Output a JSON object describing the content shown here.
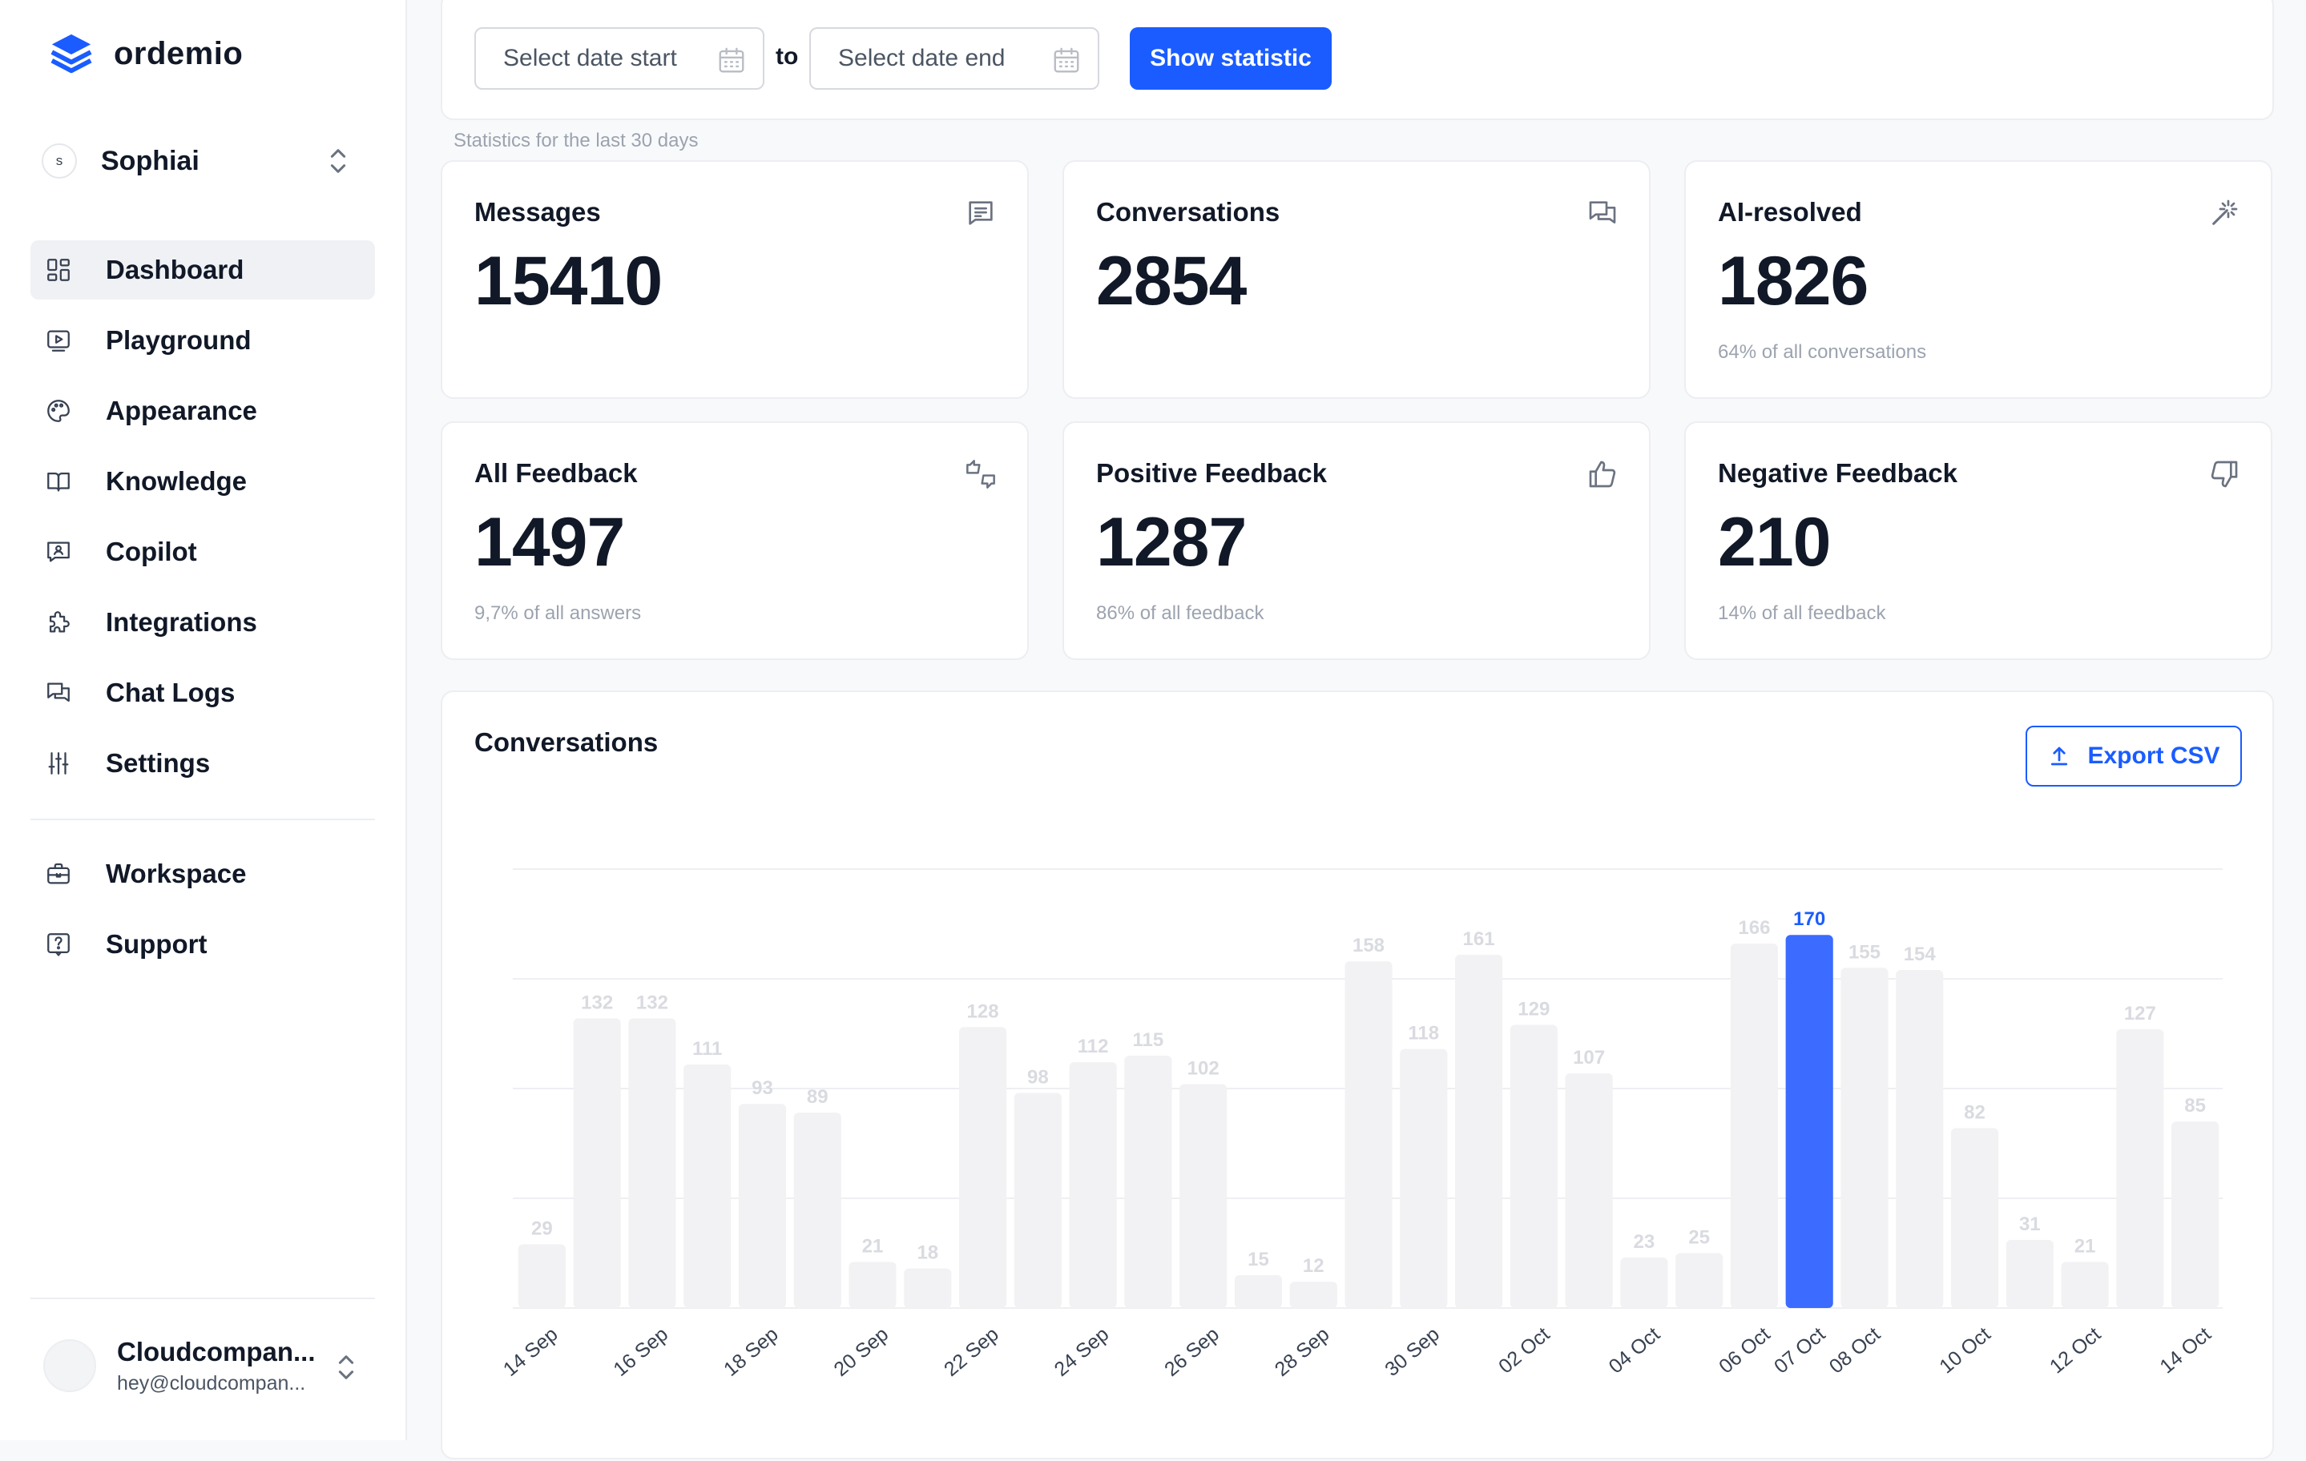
{
  "app": {
    "name": "ordemio"
  },
  "workspace": {
    "initial": "s",
    "name": "Sophiai"
  },
  "nav": {
    "main": [
      {
        "id": "dashboard",
        "label": "Dashboard",
        "icon": "dashboard-icon",
        "active": true
      },
      {
        "id": "playground",
        "label": "Playground",
        "icon": "play-icon",
        "active": false
      },
      {
        "id": "appearance",
        "label": "Appearance",
        "icon": "palette-icon",
        "active": false
      },
      {
        "id": "knowledge",
        "label": "Knowledge",
        "icon": "book-icon",
        "active": false
      },
      {
        "id": "copilot",
        "label": "Copilot",
        "icon": "copilot-icon",
        "active": false
      },
      {
        "id": "integrations",
        "label": "Integrations",
        "icon": "puzzle-icon",
        "active": false
      },
      {
        "id": "chat-logs",
        "label": "Chat Logs",
        "icon": "chat-icon",
        "active": false
      },
      {
        "id": "settings",
        "label": "Settings",
        "icon": "sliders-icon",
        "active": false
      }
    ],
    "secondary": [
      {
        "id": "workspace",
        "label": "Workspace",
        "icon": "briefcase-icon"
      },
      {
        "id": "support",
        "label": "Support",
        "icon": "help-icon"
      }
    ]
  },
  "user": {
    "name": "Cloudcompan...",
    "email": "hey@cloudcompan..."
  },
  "filters": {
    "start_placeholder": "Select date start",
    "end_placeholder": "Select date end",
    "to_label": "to",
    "show_button": "Show statistic",
    "caption": "Statistics for the last 30 days"
  },
  "stats": [
    {
      "title": "Messages",
      "value": "15410",
      "sub": "",
      "icon": "message-icon"
    },
    {
      "title": "Conversations",
      "value": "2854",
      "sub": "",
      "icon": "conversations-icon"
    },
    {
      "title": "AI-resolved",
      "value": "1826",
      "sub": "64% of all conversations",
      "icon": "magic-wand-icon"
    },
    {
      "title": "All Feedback",
      "value": "1497",
      "sub": "9,7% of all answers",
      "icon": "thumbs-updown-icon"
    },
    {
      "title": "Positive Feedback",
      "value": "1287",
      "sub": "86% of all feedback",
      "icon": "thumbs-up-icon"
    },
    {
      "title": "Negative Feedback",
      "value": "210",
      "sub": "14% of all feedback",
      "icon": "thumbs-down-icon"
    }
  ],
  "chart_section": {
    "title": "Conversations",
    "export_label": "Export CSV"
  },
  "chart_data": {
    "type": "bar",
    "title": "Conversations",
    "values": [
      29,
      132,
      132,
      111,
      93,
      89,
      21,
      18,
      128,
      98,
      112,
      115,
      102,
      15,
      12,
      158,
      118,
      161,
      129,
      107,
      23,
      25,
      166,
      170,
      155,
      154,
      82,
      31,
      21,
      127,
      85
    ],
    "x_tick_labels": [
      {
        "index": 0,
        "label": "14 Sep"
      },
      {
        "index": 2,
        "label": "16 Sep"
      },
      {
        "index": 4,
        "label": "18 Sep"
      },
      {
        "index": 6,
        "label": "20 Sep"
      },
      {
        "index": 8,
        "label": "22 Sep"
      },
      {
        "index": 10,
        "label": "24 Sep"
      },
      {
        "index": 12,
        "label": "26 Sep"
      },
      {
        "index": 14,
        "label": "28 Sep"
      },
      {
        "index": 16,
        "label": "30 Sep"
      },
      {
        "index": 18,
        "label": "02 Oct"
      },
      {
        "index": 20,
        "label": "04 Oct"
      },
      {
        "index": 22,
        "label": "06 Oct"
      },
      {
        "index": 23,
        "label": "07 Oct"
      },
      {
        "index": 24,
        "label": "08 Oct"
      },
      {
        "index": 26,
        "label": "10 Oct"
      },
      {
        "index": 28,
        "label": "12 Oct"
      },
      {
        "index": 30,
        "label": "14 Oct"
      }
    ],
    "highlighted_index": 23,
    "ylim": [
      0,
      200
    ],
    "grid": true,
    "colors": {
      "highlight": "#3b6bff",
      "bar": "#f2f2f4",
      "label": "#d9dbe0",
      "highlight_label": "#1a5cff"
    }
  }
}
